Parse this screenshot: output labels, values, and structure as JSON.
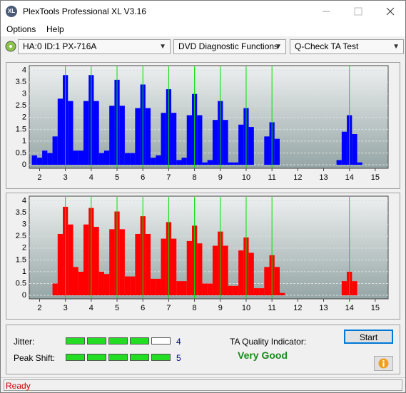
{
  "window": {
    "title": "PlexTools Professional XL V3.16",
    "icon": "XL"
  },
  "menu": [
    "Options",
    "Help"
  ],
  "toolbar": {
    "drive": "HA:0 ID:1  PX-716A",
    "function": "DVD Diagnostic Functions",
    "test": "Q-Check TA Test"
  },
  "chart_data": [
    {
      "type": "bar",
      "color": "#0000ff",
      "x": [
        1.8,
        2.0,
        2.2,
        2.4,
        2.6,
        2.8,
        3.0,
        3.2,
        3.4,
        3.6,
        3.8,
        4.0,
        4.2,
        4.4,
        4.6,
        4.8,
        5.0,
        5.2,
        5.4,
        5.6,
        5.8,
        6.0,
        6.2,
        6.4,
        6.6,
        6.8,
        7.0,
        7.2,
        7.4,
        7.6,
        7.8,
        8.0,
        8.2,
        8.4,
        8.6,
        8.8,
        9.0,
        9.2,
        9.4,
        9.6,
        9.8,
        10.0,
        10.2,
        10.4,
        10.6,
        10.8,
        11.0,
        11.2,
        11.4,
        13.6,
        13.8,
        14.0,
        14.2,
        14.4
      ],
      "values": [
        0.4,
        0.3,
        0.6,
        0.5,
        1.2,
        2.8,
        3.8,
        2.7,
        0.6,
        0.6,
        2.7,
        3.8,
        2.7,
        0.5,
        0.6,
        2.5,
        3.6,
        2.5,
        0.5,
        0.5,
        2.4,
        3.4,
        2.4,
        0.3,
        0.4,
        2.2,
        3.2,
        2.2,
        0.2,
        0.3,
        2.1,
        3.0,
        2.1,
        0.1,
        0.2,
        1.9,
        2.7,
        1.9,
        0.1,
        0.1,
        1.7,
        2.4,
        1.6,
        0,
        0,
        1.2,
        1.8,
        1.1,
        0,
        0.2,
        1.4,
        2.1,
        1.3,
        0.1
      ],
      "xlim": [
        1.6,
        15.5
      ],
      "ylim": [
        -0.15,
        4.2
      ],
      "xticks": [
        2,
        3,
        4,
        5,
        6,
        7,
        8,
        9,
        10,
        11,
        12,
        13,
        14,
        15
      ],
      "yticks": [
        0,
        0.5,
        1,
        1.5,
        2,
        2.5,
        3,
        3.5,
        4
      ],
      "grid": true,
      "markers": [
        3,
        4,
        5,
        6,
        7,
        8,
        9,
        10,
        11,
        14
      ],
      "marker_color": "#00e000"
    },
    {
      "type": "bar",
      "color": "#ff0000",
      "x": [
        1.8,
        2.0,
        2.2,
        2.4,
        2.6,
        2.8,
        3.0,
        3.2,
        3.4,
        3.6,
        3.8,
        4.0,
        4.2,
        4.4,
        4.6,
        4.8,
        5.0,
        5.2,
        5.4,
        5.6,
        5.8,
        6.0,
        6.2,
        6.4,
        6.6,
        6.8,
        7.0,
        7.2,
        7.4,
        7.6,
        7.8,
        8.0,
        8.2,
        8.4,
        8.6,
        8.8,
        9.0,
        9.2,
        9.4,
        9.6,
        9.8,
        10.0,
        10.2,
        10.4,
        10.6,
        10.8,
        11.0,
        11.2,
        11.4,
        13.6,
        13.8,
        14.0,
        14.2,
        14.4
      ],
      "values": [
        0,
        0,
        0,
        0,
        0.5,
        2.6,
        3.75,
        3.0,
        1.2,
        1.0,
        3.0,
        3.7,
        2.9,
        1.0,
        0.9,
        2.8,
        3.55,
        2.8,
        0.8,
        0.8,
        2.6,
        3.35,
        2.6,
        0.7,
        0.7,
        2.4,
        3.1,
        2.4,
        0.6,
        0.6,
        2.3,
        2.95,
        2.2,
        0.5,
        0.5,
        2.1,
        2.7,
        2.1,
        0.4,
        0.4,
        1.9,
        2.45,
        1.8,
        0.3,
        0.3,
        1.2,
        1.7,
        1.2,
        0.1,
        0,
        0.6,
        1.0,
        0.6,
        0
      ],
      "xlim": [
        1.6,
        15.5
      ],
      "ylim": [
        -0.15,
        4.2
      ],
      "xticks": [
        2,
        3,
        4,
        5,
        6,
        7,
        8,
        9,
        10,
        11,
        12,
        13,
        14,
        15
      ],
      "yticks": [
        0,
        0.5,
        1,
        1.5,
        2,
        2.5,
        3,
        3.5,
        4
      ],
      "grid": true,
      "markers": [
        3,
        4,
        5,
        6,
        7,
        8,
        9,
        10,
        11,
        14
      ],
      "marker_color": "#00e000"
    }
  ],
  "results": {
    "jitter": {
      "label": "Jitter:",
      "value": 4
    },
    "peak_shift": {
      "label": "Peak Shift:",
      "value": 5
    },
    "ta_quality_label": "TA Quality Indicator:",
    "ta_quality": "Very Good",
    "start": "Start"
  },
  "status": "Ready"
}
